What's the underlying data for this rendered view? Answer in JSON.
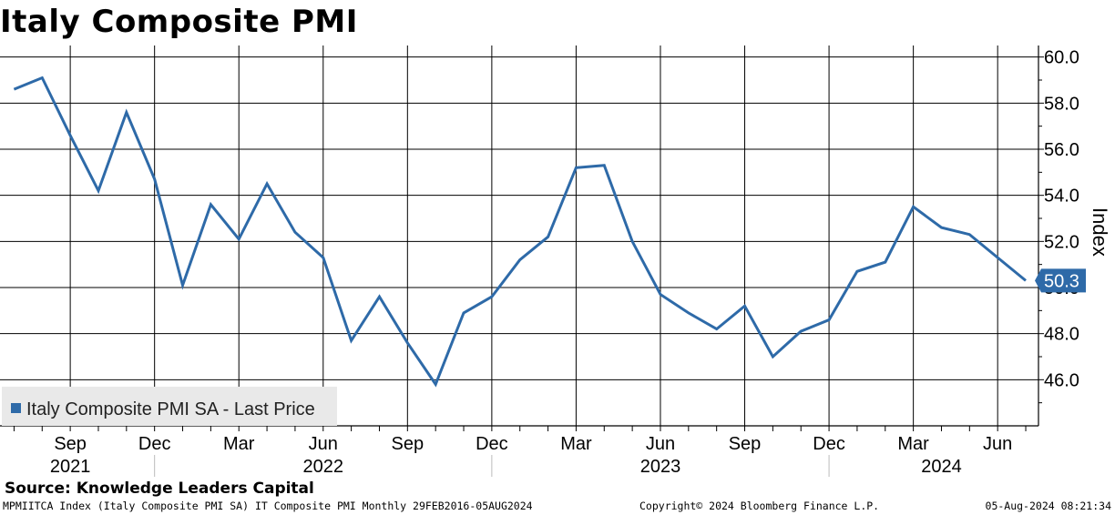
{
  "title": "Italy Composite PMI",
  "source": "Source: Knowledge Leaders Capital",
  "footer": {
    "left": "MPMIITCA Index (Italy Composite PMI SA) IT Composite PMI  Monthly 29FEB2016-05AUG2024",
    "center": "Copyright© 2024 Bloomberg Finance L.P.",
    "right": "05-Aug-2024 08:21:34"
  },
  "colors": {
    "line": "#2e6aa8",
    "last_label_bg": "#2e6aa8",
    "legend_bg": "#e9e9e9",
    "grid": "#000000"
  },
  "chart_data": {
    "type": "line",
    "ylabel": "Index",
    "ylim": [
      44.0,
      60.5
    ],
    "yticks": [
      46.0,
      48.0,
      50.0,
      52.0,
      54.0,
      56.0,
      58.0,
      60.0
    ],
    "ytick_labels": [
      "46.0",
      "48.0",
      "50.0",
      "52.0",
      "54.0",
      "56.0",
      "58.0",
      "60.0"
    ],
    "grid": true,
    "x_month_labels": [
      {
        "date": "2021-09",
        "label": "Sep"
      },
      {
        "date": "2021-12",
        "label": "Dec"
      },
      {
        "date": "2022-03",
        "label": "Mar"
      },
      {
        "date": "2022-06",
        "label": "Jun"
      },
      {
        "date": "2022-09",
        "label": "Sep"
      },
      {
        "date": "2022-12",
        "label": "Dec"
      },
      {
        "date": "2023-03",
        "label": "Mar"
      },
      {
        "date": "2023-06",
        "label": "Jun"
      },
      {
        "date": "2023-09",
        "label": "Sep"
      },
      {
        "date": "2023-12",
        "label": "Dec"
      },
      {
        "date": "2024-03",
        "label": "Mar"
      },
      {
        "date": "2024-06",
        "label": "Jun"
      }
    ],
    "x_year_labels": [
      {
        "date": "2021-09",
        "label": "2021"
      },
      {
        "date": "2022-06",
        "label": "2022"
      },
      {
        "date": "2023-06",
        "label": "2023"
      },
      {
        "date": "2024-04",
        "label": "2024"
      }
    ],
    "year_separators": [
      "2021-12",
      "2022-12",
      "2023-12"
    ],
    "legend": {
      "label": "Italy Composite PMI SA - Last Price",
      "position": "bottom-left"
    },
    "last_value_label": "50.3",
    "series": [
      {
        "name": "Italy Composite PMI SA - Last Price",
        "x": [
          "2021-07",
          "2021-08",
          "2021-09",
          "2021-10",
          "2021-11",
          "2021-12",
          "2022-01",
          "2022-02",
          "2022-03",
          "2022-04",
          "2022-05",
          "2022-06",
          "2022-07",
          "2022-08",
          "2022-09",
          "2022-10",
          "2022-11",
          "2022-12",
          "2023-01",
          "2023-02",
          "2023-03",
          "2023-04",
          "2023-05",
          "2023-06",
          "2023-07",
          "2023-08",
          "2023-09",
          "2023-10",
          "2023-11",
          "2023-12",
          "2024-01",
          "2024-02",
          "2024-03",
          "2024-04",
          "2024-05",
          "2024-06",
          "2024-07"
        ],
        "y": [
          58.6,
          59.1,
          56.6,
          54.2,
          57.6,
          54.7,
          50.1,
          53.6,
          52.1,
          54.5,
          52.4,
          51.3,
          47.7,
          49.6,
          47.6,
          45.8,
          48.9,
          49.6,
          51.2,
          52.2,
          55.2,
          55.3,
          52.0,
          49.7,
          48.9,
          48.2,
          49.2,
          47.0,
          48.1,
          48.6,
          50.7,
          51.1,
          53.5,
          52.6,
          52.3,
          51.3,
          50.3
        ]
      }
    ]
  }
}
